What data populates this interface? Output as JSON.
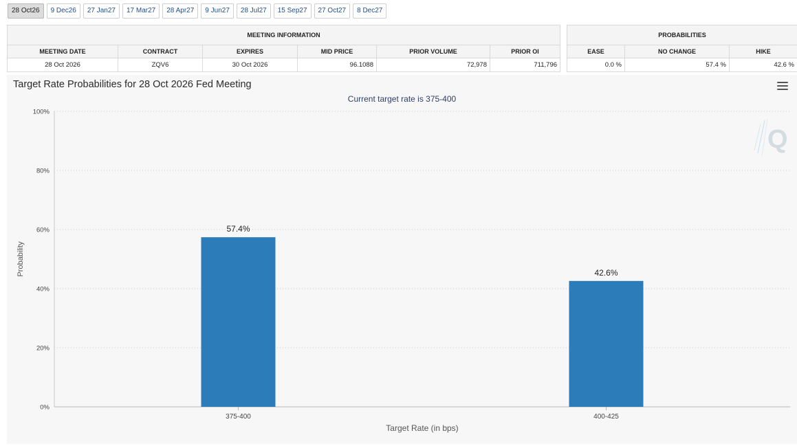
{
  "tabs": [
    "28 Oct26",
    "9 Dec26",
    "27 Jan27",
    "17 Mar27",
    "28 Apr27",
    "9 Jun27",
    "28 Jul27",
    "15 Sep27",
    "27 Oct27",
    "8 Dec27"
  ],
  "meeting_info": {
    "header": "MEETING INFORMATION",
    "columns": [
      "MEETING DATE",
      "CONTRACT",
      "EXPIRES",
      "MID PRICE",
      "PRIOR VOLUME",
      "PRIOR OI"
    ],
    "row": [
      "28 Oct 2026",
      "ZQV6",
      "30 Oct 2026",
      "96.1088",
      "72,978",
      "711,796"
    ]
  },
  "probabilities": {
    "header": "PROBABILITIES",
    "columns": [
      "EASE",
      "NO CHANGE",
      "HIKE"
    ],
    "row": [
      "0.0 %",
      "57.4 %",
      "42.6 %"
    ]
  },
  "chart": {
    "title": "Target Rate Probabilities for 28 Oct 2026 Fed Meeting",
    "subtitle": "Current target rate is 375-400"
  },
  "chart_data": {
    "type": "bar",
    "categories": [
      "375-400",
      "400-425"
    ],
    "values": [
      57.4,
      42.6
    ],
    "data_labels": [
      "57.4%",
      "42.6%"
    ],
    "title": "Target Rate Probabilities for 28 Oct 2026 Fed Meeting",
    "subtitle": "Current target rate is 375-400",
    "xlabel": "Target Rate (in bps)",
    "ylabel": "Probability",
    "ylim": [
      0,
      100
    ],
    "yticks": [
      0,
      20,
      40,
      60,
      80,
      100
    ],
    "ytick_labels": [
      "0%",
      "20%",
      "40%",
      "60%",
      "80%",
      "100%"
    ],
    "grid": true,
    "bar_color": "#2b7cb8"
  },
  "colors": {
    "bar": "#2b7cb8",
    "panel_bg": "#f7f7f7",
    "subtitle": "#2f3e66"
  },
  "icons": {
    "menu": "hamburger-menu-icon",
    "watermark": "q-logo-icon"
  }
}
